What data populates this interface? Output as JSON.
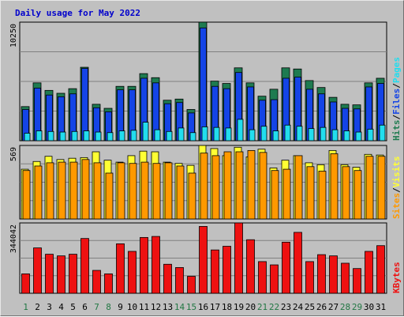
{
  "title": "Daily usage for May 2022",
  "colors": {
    "background": "#c0c0c0",
    "plot_bg": "#c0c0c0",
    "grid": "#808080",
    "title": "#0000cc",
    "axis_label": "#000000",
    "weekday_label": "#007060",
    "weekend_label": "#227744",
    "hits": "#1e7b50",
    "files": "#1444e6",
    "pages": "#22ddee",
    "visits": "#ffff33",
    "sites": "#ff9900",
    "kbytes": "#ee1111"
  },
  "chart_data": [
    {
      "type": "bar",
      "panel": "top",
      "max_label": "10250",
      "categories": [
        "1",
        "2",
        "3",
        "4",
        "5",
        "6",
        "7",
        "8",
        "9",
        "10",
        "11",
        "12",
        "13",
        "14",
        "15",
        "16",
        "17",
        "18",
        "19",
        "20",
        "21",
        "22",
        "23",
        "24",
        "25",
        "26",
        "27",
        "28",
        "29",
        "30",
        "31"
      ],
      "weekend_days": [
        "1",
        "7",
        "8",
        "14",
        "15",
        "21",
        "22",
        "28",
        "29"
      ],
      "ylim": [
        0,
        10250
      ],
      "legend": [
        {
          "label": "Hits",
          "color": "#1e7b50"
        },
        {
          "label": "Files",
          "color": "#1444e6"
        },
        {
          "label": "Pages",
          "color": "#22ddee"
        }
      ],
      "separator": "/",
      "series": [
        {
          "name": "Hits",
          "values": [
            2950,
            5000,
            4350,
            4100,
            4500,
            6350,
            3150,
            2800,
            4700,
            4700,
            5800,
            5450,
            3500,
            3600,
            2700,
            10250,
            5150,
            4950,
            6300,
            5000,
            3850,
            4450,
            6300,
            6200,
            5200,
            4600,
            3750,
            3150,
            3100,
            5000,
            5400
          ]
        },
        {
          "name": "Files",
          "values": [
            2700,
            4550,
            3950,
            3800,
            4050,
            6250,
            2850,
            2500,
            4400,
            4400,
            5400,
            5000,
            3200,
            3300,
            2400,
            9750,
            4700,
            4500,
            5900,
            4650,
            3500,
            3550,
            5400,
            5500,
            4450,
            4050,
            3350,
            2800,
            2750,
            4650,
            4950
          ]
        },
        {
          "name": "Pages",
          "values": [
            650,
            850,
            800,
            750,
            800,
            850,
            750,
            700,
            850,
            900,
            1600,
            950,
            800,
            1100,
            700,
            1200,
            1150,
            1100,
            1850,
            950,
            1250,
            850,
            1350,
            1250,
            1050,
            1150,
            950,
            850,
            750,
            1000,
            1350
          ]
        }
      ]
    },
    {
      "type": "bar",
      "panel": "middle",
      "max_label": "569",
      "categories": [
        "1",
        "2",
        "3",
        "4",
        "5",
        "6",
        "7",
        "8",
        "9",
        "10",
        "11",
        "12",
        "13",
        "14",
        "15",
        "16",
        "17",
        "18",
        "19",
        "20",
        "21",
        "22",
        "23",
        "24",
        "25",
        "26",
        "27",
        "28",
        "29",
        "30",
        "31"
      ],
      "ylim": [
        0,
        569
      ],
      "legend": [
        {
          "label": "Sites",
          "color": "#ff9900"
        },
        {
          "label": "Visits",
          "color": "#ffff33"
        }
      ],
      "separator": "/",
      "series": [
        {
          "name": "Visits",
          "values": [
            385,
            445,
            485,
            460,
            470,
            475,
            520,
            455,
            440,
            490,
            525,
            520,
            440,
            430,
            415,
            569,
            545,
            490,
            555,
            480,
            540,
            395,
            455,
            490,
            435,
            420,
            530,
            420,
            400,
            500,
            495
          ]
        },
        {
          "name": "Sites",
          "values": [
            375,
            410,
            435,
            440,
            440,
            460,
            435,
            355,
            435,
            430,
            440,
            430,
            435,
            410,
            355,
            510,
            490,
            520,
            520,
            530,
            515,
            375,
            385,
            490,
            405,
            370,
            505,
            405,
            375,
            485,
            485
          ]
        }
      ]
    },
    {
      "type": "bar",
      "panel": "bottom",
      "max_label": "344042",
      "categories": [
        "1",
        "2",
        "3",
        "4",
        "5",
        "6",
        "7",
        "8",
        "9",
        "10",
        "11",
        "12",
        "13",
        "14",
        "15",
        "16",
        "17",
        "18",
        "19",
        "20",
        "21",
        "22",
        "23",
        "24",
        "25",
        "26",
        "27",
        "28",
        "29",
        "30",
        "31"
      ],
      "ylim": [
        0,
        344042
      ],
      "legend": [
        {
          "label": "KBytes",
          "color": "#ee1111"
        }
      ],
      "series": [
        {
          "name": "KBytes",
          "values": [
            95000,
            222000,
            191000,
            183000,
            191000,
            268000,
            112000,
            95000,
            242000,
            205000,
            273000,
            278000,
            142000,
            126000,
            83000,
            327000,
            212000,
            230000,
            344042,
            262000,
            155000,
            139000,
            250000,
            298000,
            155000,
            189000,
            183000,
            147000,
            121000,
            205000,
            233000
          ]
        }
      ]
    }
  ]
}
